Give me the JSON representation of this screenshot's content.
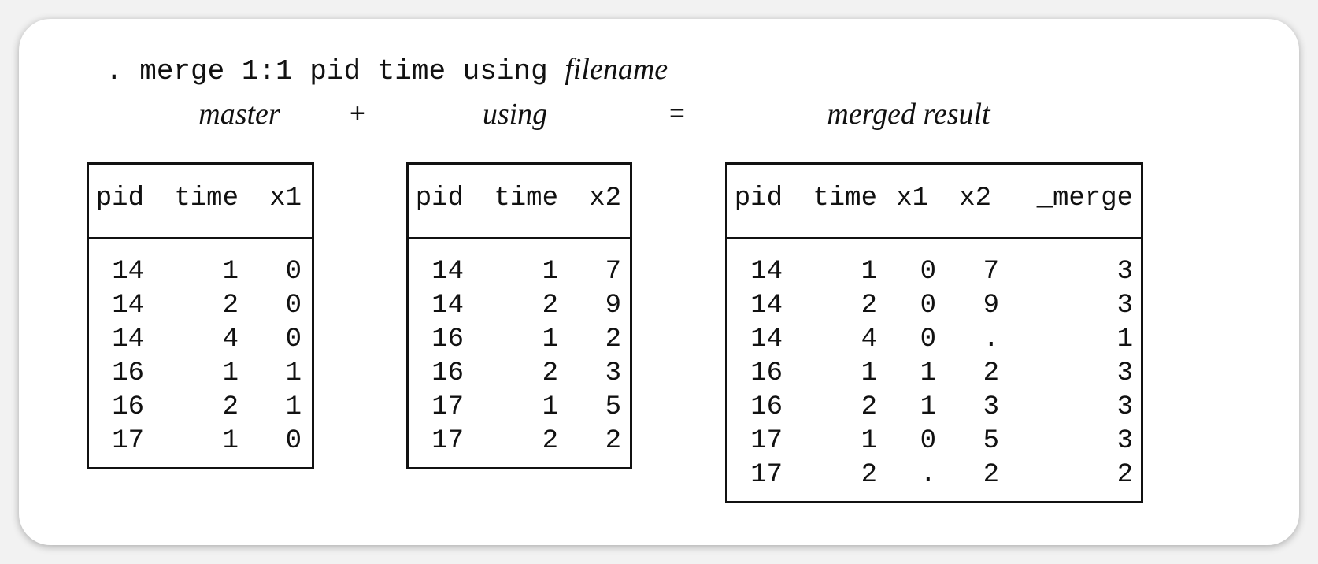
{
  "command": {
    "prompt": ".",
    "text": "merge 1:1 pid time using",
    "filename": "filename"
  },
  "labels": {
    "master": "master",
    "plus": "+",
    "using": "using",
    "equals": "=",
    "merged": "merged result"
  },
  "master": {
    "columns": [
      "pid",
      "time",
      "x1"
    ],
    "rows": [
      [
        "14",
        "1",
        "0"
      ],
      [
        "14",
        "2",
        "0"
      ],
      [
        "14",
        "4",
        "0"
      ],
      [
        "16",
        "1",
        "1"
      ],
      [
        "16",
        "2",
        "1"
      ],
      [
        "17",
        "1",
        "0"
      ]
    ]
  },
  "using": {
    "columns": [
      "pid",
      "time",
      "x2"
    ],
    "rows": [
      [
        "14",
        "1",
        "7"
      ],
      [
        "14",
        "2",
        "9"
      ],
      [
        "16",
        "1",
        "2"
      ],
      [
        "16",
        "2",
        "3"
      ],
      [
        "17",
        "1",
        "5"
      ],
      [
        "17",
        "2",
        "2"
      ]
    ]
  },
  "merged": {
    "columns": [
      "pid",
      "time",
      "x1",
      "x2",
      "_merge"
    ],
    "rows": [
      [
        "14",
        "1",
        "0",
        "7",
        "3"
      ],
      [
        "14",
        "2",
        "0",
        "9",
        "3"
      ],
      [
        "14",
        "4",
        "0",
        ".",
        "1"
      ],
      [
        "16",
        "1",
        "1",
        "2",
        "3"
      ],
      [
        "16",
        "2",
        "1",
        "3",
        "3"
      ],
      [
        "17",
        "1",
        "0",
        "5",
        "3"
      ],
      [
        "17",
        "2",
        ".",
        "2",
        "2"
      ]
    ]
  }
}
